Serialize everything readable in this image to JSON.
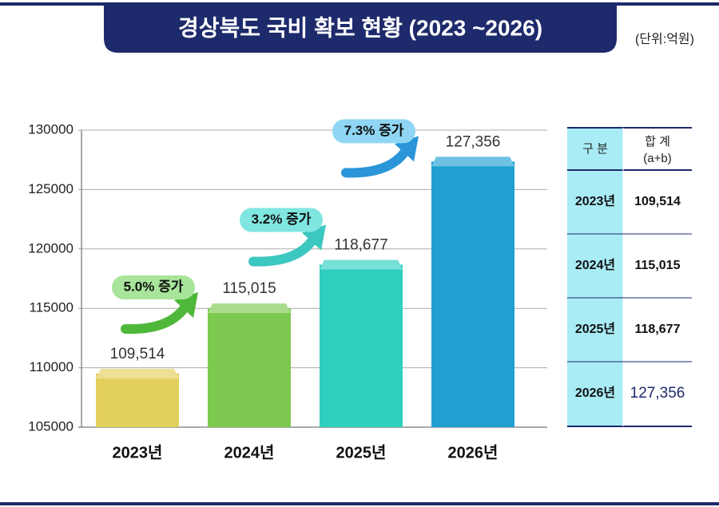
{
  "title": "경상북도 국비 확보 현황 (2023 ~2026)",
  "unit": "(단위:억원)",
  "chart_data": {
    "type": "bar",
    "categories": [
      "2023년",
      "2024년",
      "2025년",
      "2026년"
    ],
    "values": [
      109514,
      115015,
      118677,
      127356
    ],
    "value_labels": [
      "109,514",
      "115,015",
      "118,677",
      "127,356"
    ],
    "colors": [
      "#e3cf5c",
      "#7dc94f",
      "#2fcfc0",
      "#1f9fd2"
    ],
    "ylim": [
      105000,
      130000
    ],
    "yticks": [
      105000,
      110000,
      115000,
      120000,
      125000,
      130000
    ],
    "grid": true,
    "annotations": [
      "5.0% 증가",
      "3.2% 증가",
      "7.3% 증가"
    ]
  },
  "table": {
    "header": [
      "구 분",
      "합 계",
      "(a+b)"
    ],
    "rows": [
      [
        "2023년",
        "109,514"
      ],
      [
        "2024년",
        "115,015"
      ],
      [
        "2025년",
        "118,677"
      ],
      [
        "2026년",
        "127,356"
      ]
    ]
  }
}
